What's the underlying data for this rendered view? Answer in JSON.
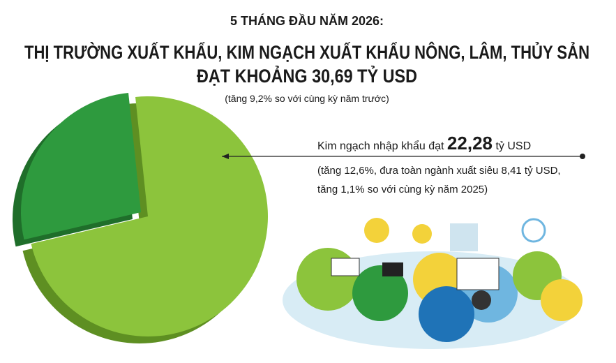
{
  "chart_data": {
    "type": "pie",
    "kicker": "5 THÁNG ĐẦU NĂM 2026:",
    "title_lines": [
      "THỊ TRƯỜNG XUẤT KHẨU, KIM NGẠCH XUẤT KHẨU NÔNG, LÂM, THỦY SẢN",
      "ĐẠT KHOẢNG 30,69 TỶ USD"
    ],
    "subtitle": "(tăng 9,2% so với cùng kỳ năm trước)",
    "values": [
      73,
      27
    ],
    "colors": [
      "#8cc43c",
      "#2e9a3e"
    ],
    "depth_colors": [
      "#5e8f22",
      "#1f6e2a"
    ],
    "annotation": {
      "prefix": "Kim ngạch nhập khẩu đạt",
      "highlight": "22,28",
      "suffix": "tỷ USD",
      "lines": [
        "(tăng 12,6%, đưa toàn ngành xuất siêu 8,41 tỷ USD,",
        "tăng 1,1% so với cùng kỳ năm 2025)"
      ]
    }
  }
}
